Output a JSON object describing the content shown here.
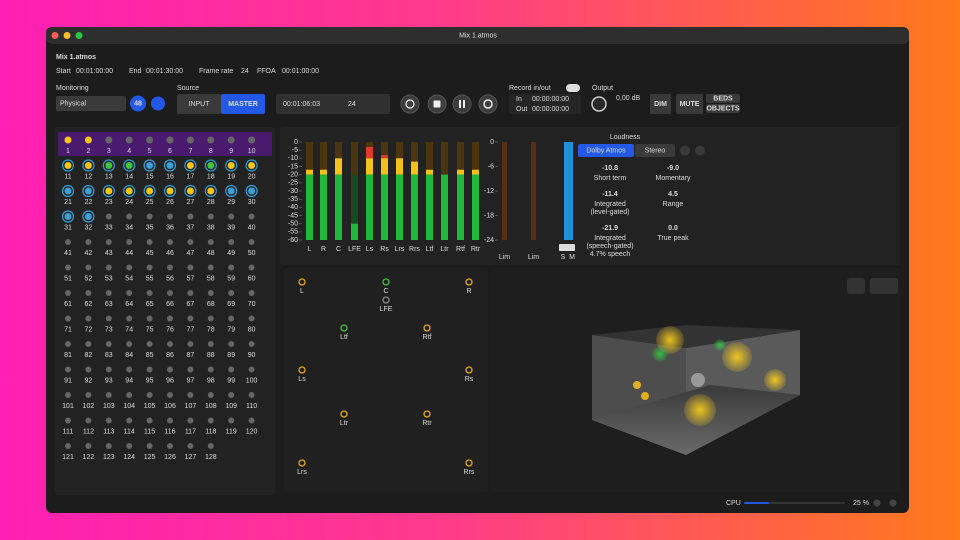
{
  "window": {
    "title": "Mix 1.atmos"
  },
  "header": {
    "name": "Mix 1.atmos",
    "start_label": "Start",
    "start": "00:01:00:00",
    "end_label": "End",
    "end": "00:01:30:00",
    "frame_rate_label": "Frame rate",
    "frame_rate": "24",
    "ffoa_label": "FFOA",
    "ffoa": "00:01:00:00"
  },
  "toolbar": {
    "monitoring_label": "Monitoring",
    "monitoring": "Physical",
    "badge": "48",
    "source_label": "Source",
    "source_input": "INPUT",
    "source_master": "MASTER",
    "timecode": "00:01:06:03",
    "timecode_rate": "24",
    "record_label": "Record in/out",
    "in_label": "In",
    "in": "00:00:00:00",
    "out_label": "Out",
    "out": "00:00:00:00",
    "output_label": "Output",
    "output": "0,00 dB",
    "dim": "DIM",
    "mute": "MUTE",
    "beds": "BEDS",
    "objects": "OBJECTS"
  },
  "objects": {
    "labels": [
      1,
      2,
      3,
      4,
      5,
      6,
      7,
      8,
      9,
      10,
      11,
      12,
      13,
      14,
      15,
      16,
      17,
      18,
      19,
      20,
      21,
      22,
      23,
      24,
      25,
      26,
      27,
      28,
      29,
      30,
      31,
      32,
      33,
      34,
      35,
      36,
      37,
      38,
      39,
      40,
      41,
      42,
      43,
      44,
      45,
      46,
      47,
      48,
      49,
      50,
      51,
      52,
      53,
      54,
      55,
      56,
      57,
      58,
      59,
      60,
      61,
      62,
      63,
      64,
      65,
      66,
      67,
      68,
      69,
      70,
      71,
      72,
      73,
      74,
      75,
      76,
      77,
      78,
      79,
      80,
      81,
      82,
      83,
      84,
      85,
      86,
      87,
      88,
      89,
      90,
      91,
      92,
      93,
      94,
      95,
      96,
      97,
      98,
      99,
      100,
      101,
      102,
      103,
      104,
      105,
      106,
      107,
      108,
      109,
      110,
      111,
      112,
      113,
      114,
      115,
      116,
      117,
      118,
      119,
      120,
      121,
      122,
      123,
      124,
      125,
      126,
      127,
      128
    ],
    "colors": [
      "#f5c518",
      "#f5c518",
      "#666",
      "#666",
      "#666",
      "#666",
      "#666",
      "#666",
      "#666",
      "#666",
      "#f5c518",
      "#f5c518",
      "#3ec43e",
      "#3ec43e",
      "#3aa0d8",
      "#3aa0d8",
      "#f5c518",
      "#3ec43e",
      "#f5c518",
      "#f5c518",
      "#3aa0d8",
      "#3aa0d8",
      "#f5c518",
      "#f5c518",
      "#f5c518",
      "#f5c518",
      "#f5c518",
      "#f5c518",
      "#3aa0d8",
      "#3aa0d8",
      "#3aa0d8",
      "#3aa0d8"
    ]
  },
  "meters": {
    "scale": [
      0,
      -5,
      -10,
      -15,
      -20,
      -25,
      -30,
      -35,
      -40,
      -45,
      -50,
      -55,
      -60
    ],
    "channels": [
      "L",
      "R",
      "C",
      "LFE",
      "Ls",
      "Rs",
      "Lrs",
      "Rrs",
      "Ltf",
      "Ltr",
      "Rtf",
      "Rtr"
    ],
    "levels": [
      -17,
      -17,
      -10,
      -50,
      -3,
      -8,
      -10,
      -12,
      -17,
      -20,
      -17,
      -17
    ],
    "limiter_scale": [
      0,
      -6,
      -12,
      -18,
      -24
    ],
    "limiter_labels": [
      "Lim",
      "Lim"
    ],
    "lfe_label": "LFE",
    "s_label": "S",
    "m_label": "M"
  },
  "loudness": {
    "title": "Loudness",
    "tab_atmos": "Dolby Atmos",
    "tab_stereo": "Stereo",
    "readings": [
      {
        "value": "-10.8",
        "label": "Short term"
      },
      {
        "value": "-9.0",
        "label": "Momentary"
      },
      {
        "value": "-11.4",
        "label": "Integrated (level-gated)"
      },
      {
        "value": "4.5",
        "label": "Range"
      },
      {
        "value": "-21.9",
        "label": "Integrated (speech-gated)"
      },
      {
        "value": "0.0",
        "label": "True peak"
      }
    ],
    "speech": "4.7% speech"
  },
  "speakers": [
    "L",
    "C",
    "R",
    "LFE",
    "Ltf",
    "Rtf",
    "Ls",
    "Rs",
    "Ltr",
    "Rtr",
    "Lrs",
    "Rrs"
  ],
  "footer": {
    "cpu_label": "CPU",
    "cpu": "25 %"
  }
}
